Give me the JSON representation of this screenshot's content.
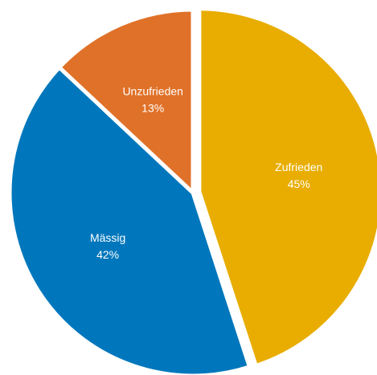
{
  "chart_data": {
    "type": "pie",
    "categories": [
      "Zufrieden",
      "Mässig",
      "Unzufrieden"
    ],
    "values": [
      45,
      42,
      13
    ],
    "value_labels": [
      "45%",
      "42%",
      "13%"
    ],
    "colors": [
      "#e8ad00",
      "#0077bc",
      "#e07128"
    ]
  }
}
